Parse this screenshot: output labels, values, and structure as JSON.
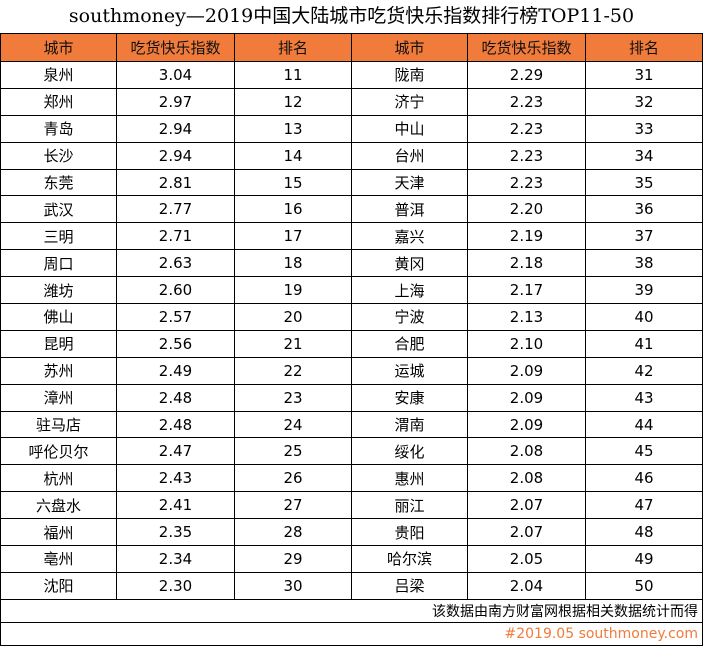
{
  "title": "southmoney—2019中国大陆城市吃货快乐指数排行榜TOP11-50",
  "headers": [
    "城市",
    "吃货快乐指数",
    "排名",
    "城市",
    "吃货快乐指数",
    "排名"
  ],
  "rows": [
    [
      "泉州",
      "3.04",
      "11",
      "陇南",
      "2.29",
      "31"
    ],
    [
      "郑州",
      "2.97",
      "12",
      "济宁",
      "2.23",
      "32"
    ],
    [
      "青岛",
      "2.94",
      "13",
      "中山",
      "2.23",
      "33"
    ],
    [
      "长沙",
      "2.94",
      "14",
      "台州",
      "2.23",
      "34"
    ],
    [
      "东莞",
      "2.81",
      "15",
      "天津",
      "2.23",
      "35"
    ],
    [
      "武汉",
      "2.77",
      "16",
      "普洱",
      "2.20",
      "36"
    ],
    [
      "三明",
      "2.71",
      "17",
      "嘉兴",
      "2.19",
      "37"
    ],
    [
      "周口",
      "2.63",
      "18",
      "黄冈",
      "2.18",
      "38"
    ],
    [
      "潍坊",
      "2.60",
      "19",
      "上海",
      "2.17",
      "39"
    ],
    [
      "佛山",
      "2.57",
      "20",
      "宁波",
      "2.13",
      "40"
    ],
    [
      "昆明",
      "2.56",
      "21",
      "合肥",
      "2.10",
      "41"
    ],
    [
      "苏州",
      "2.49",
      "22",
      "运城",
      "2.09",
      "42"
    ],
    [
      "漳州",
      "2.48",
      "23",
      "安康",
      "2.09",
      "43"
    ],
    [
      "驻马店",
      "2.48",
      "24",
      "渭南",
      "2.09",
      "44"
    ],
    [
      "呼伦贝尔",
      "2.47",
      "25",
      "绥化",
      "2.08",
      "45"
    ],
    [
      "杭州",
      "2.43",
      "26",
      "惠州",
      "2.08",
      "46"
    ],
    [
      "六盘水",
      "2.41",
      "27",
      "丽江",
      "2.07",
      "47"
    ],
    [
      "福州",
      "2.35",
      "28",
      "贵阳",
      "2.07",
      "48"
    ],
    [
      "亳州",
      "2.34",
      "29",
      "哈尔滨",
      "2.05",
      "49"
    ],
    [
      "沈阳",
      "2.30",
      "30",
      "吕梁",
      "2.04",
      "50"
    ]
  ],
  "footer_note": "该数据由南方财富网根据相关数据统计而得",
  "footer_source": "#2019.05 southmoney.com",
  "colors": {
    "header_bg": "#f07b3a",
    "source_text": "#f07b3a"
  }
}
